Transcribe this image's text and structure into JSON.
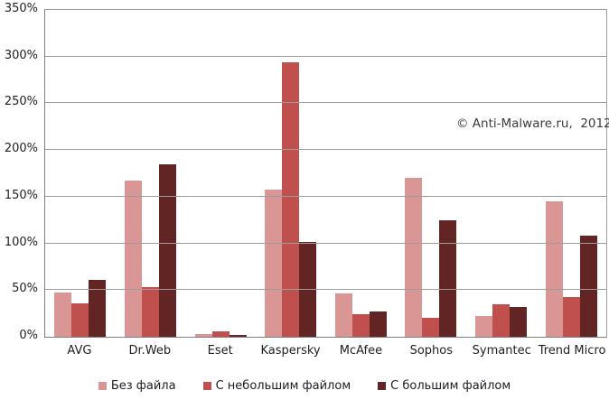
{
  "annotation": "© Anti-Malware.ru,  2012",
  "chart_data": {
    "type": "bar",
    "title": "",
    "xlabel": "",
    "ylabel": "",
    "categories": [
      "AVG",
      "Dr.Web",
      "Eset",
      "Kaspersky",
      "McAfee",
      "Sophos",
      "Symantec",
      "Trend Micro"
    ],
    "series": [
      {
        "name": "Без файла",
        "color": "#D99694",
        "values": [
          47,
          167,
          3,
          158,
          46,
          170,
          22,
          145
        ]
      },
      {
        "name": "С небольшим файлом",
        "color": "#C0504D",
        "values": [
          36,
          53,
          6,
          294,
          24,
          20,
          35,
          43
        ]
      },
      {
        "name": "С большим файлом",
        "color": "#632523",
        "values": [
          61,
          185,
          2,
          102,
          27,
          125,
          32,
          108
        ]
      }
    ],
    "ylim": [
      0,
      350
    ],
    "ytick_step": 50,
    "ytick_format": "percent",
    "grid": true,
    "legend_position": "bottom",
    "annotations": [
      "© Anti-Malware.ru,  2012"
    ],
    "colors": {
      "gridline": "#9c9c9c",
      "axis": "#808080",
      "text": "#1f1f1f"
    }
  }
}
